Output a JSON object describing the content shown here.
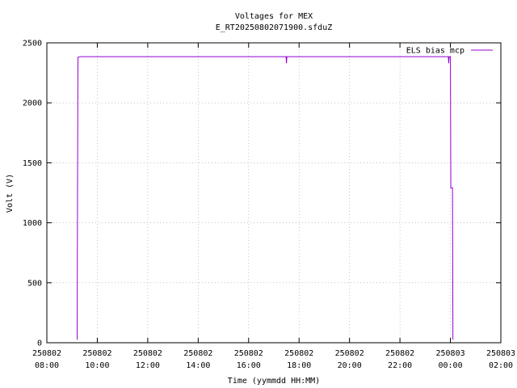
{
  "chart_data": {
    "type": "line",
    "title": "Voltages for MEX",
    "subtitle": "E_RT20250802071900.sfduZ",
    "x_label": "Time (yymmdd HH:MM)",
    "y_label": "Volt (V)",
    "x": [
      "250802 09:12",
      "250802 09:13",
      "250802 09:14",
      "250802 09:20",
      "250802 17:29",
      "250802 17:30",
      "250802 17:31",
      "250802 23:55",
      "250802 23:56",
      "250802 23:57",
      "250803 00:00",
      "250803 00:01",
      "250803 00:05",
      "250803 00:06"
    ],
    "series": [
      {
        "name": "ELS bias mcp",
        "color": "#9400d3",
        "values": [
          25,
          1280,
          2380,
          2385,
          2385,
          2330,
          2385,
          2385,
          2330,
          2385,
          2385,
          1290,
          1290,
          25
        ]
      }
    ],
    "xlim": [
      "250802 08:00",
      "250803 02:00"
    ],
    "xticks": [
      "250802 08:00",
      "250802 10:00",
      "250802 12:00",
      "250802 14:00",
      "250802 16:00",
      "250802 18:00",
      "250802 20:00",
      "250802 22:00",
      "250803 00:00",
      "250803 02:00"
    ],
    "ylim": [
      0,
      2500
    ],
    "yticks": [
      0,
      500,
      1000,
      1500,
      2000,
      2500
    ],
    "grid": true,
    "legend": "top-right"
  }
}
